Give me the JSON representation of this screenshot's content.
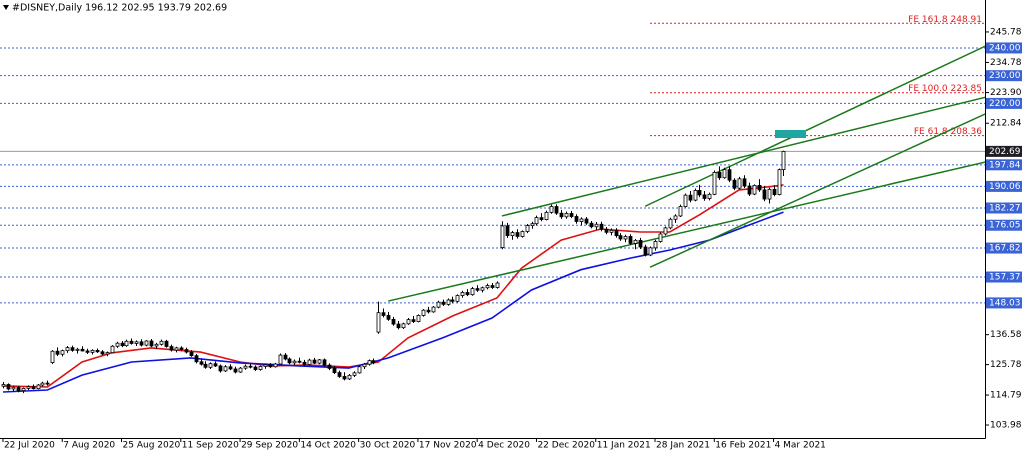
{
  "chart_data": {
    "type": "candlestick",
    "title": "#DISNEY,Daily  196.12 202.95 193.79 202.69",
    "categories": [
      "22 Jul 2020",
      null,
      null,
      null,
      null,
      null,
      null,
      null,
      null,
      null,
      null,
      null,
      "7 Aug 2020",
      null,
      null,
      null,
      null,
      null,
      null,
      null,
      null,
      null,
      null,
      null,
      "25 Aug 2020",
      null,
      null,
      null,
      null,
      null,
      null,
      null,
      null,
      null,
      null,
      null,
      "11 Sep 2020",
      null,
      null,
      null,
      null,
      null,
      null,
      null,
      null,
      null,
      null,
      null,
      "29 Sep 2020",
      null,
      null,
      null,
      null,
      null,
      null,
      null,
      null,
      null,
      null,
      null,
      "14 Oct 2020",
      null,
      null,
      null,
      null,
      null,
      null,
      null,
      null,
      null,
      null,
      null,
      "30 Oct 2020",
      null,
      null,
      null,
      null,
      null,
      null,
      null,
      null,
      null,
      null,
      null,
      "17 Nov 2020",
      null,
      null,
      null,
      null,
      null,
      null,
      null,
      null,
      null,
      null,
      null,
      "4 Dec 2020",
      null,
      null,
      null,
      null,
      null,
      null,
      null,
      null,
      null,
      null,
      null,
      "22 Dec 2020",
      null,
      null,
      null,
      null,
      null,
      null,
      null,
      null,
      null,
      null,
      null,
      "11 Jan 2021",
      null,
      null,
      null,
      null,
      null,
      null,
      null,
      null,
      null,
      null,
      null,
      "28 Jan 2021",
      null,
      null,
      null,
      null,
      null,
      null,
      null,
      null,
      null,
      null,
      null,
      "16 Feb 2021",
      null,
      null,
      null,
      null,
      null,
      null,
      null,
      null,
      null,
      null,
      null,
      "4 Mar 2021",
      null,
      null
    ],
    "ohlc": [
      [
        118.0,
        119.5,
        117.2,
        118.6
      ],
      [
        118.6,
        119.0,
        116.5,
        117.0
      ],
      [
        117.0,
        118.2,
        116.0,
        117.6
      ],
      [
        117.6,
        118.0,
        115.8,
        116.4
      ],
      [
        116.4,
        117.5,
        115.5,
        117.2
      ],
      [
        117.2,
        118.3,
        116.6,
        117.8
      ],
      [
        117.8,
        118.6,
        116.8,
        117.1
      ],
      [
        117.1,
        118.8,
        116.9,
        118.4
      ],
      [
        118.4,
        119.6,
        117.9,
        119.1
      ],
      [
        119.1,
        120.0,
        118.2,
        118.8
      ],
      [
        126.5,
        131.0,
        126.0,
        130.6
      ],
      [
        130.6,
        132.0,
        128.9,
        129.5
      ],
      [
        129.5,
        131.2,
        128.7,
        130.8
      ],
      [
        130.8,
        132.5,
        130.0,
        131.9
      ],
      [
        131.9,
        132.6,
        130.4,
        130.9
      ],
      [
        130.9,
        131.8,
        129.8,
        131.3
      ],
      [
        131.3,
        132.4,
        130.5,
        130.7
      ],
      [
        130.7,
        131.5,
        129.6,
        130.2
      ],
      [
        130.2,
        131.3,
        129.4,
        130.9
      ],
      [
        130.9,
        131.6,
        130.0,
        130.4
      ],
      [
        130.4,
        131.0,
        129.2,
        129.6
      ],
      [
        129.6,
        130.5,
        128.8,
        130.1
      ],
      [
        130.1,
        132.8,
        129.9,
        132.4
      ],
      [
        132.4,
        134.0,
        131.8,
        133.5
      ],
      [
        133.5,
        134.3,
        132.1,
        132.6
      ],
      [
        132.6,
        134.8,
        132.2,
        134.2
      ],
      [
        134.2,
        135.2,
        133.0,
        133.4
      ],
      [
        133.4,
        134.5,
        132.5,
        134.0
      ],
      [
        134.0,
        134.9,
        132.3,
        132.8
      ],
      [
        132.8,
        134.6,
        132.4,
        134.3
      ],
      [
        134.3,
        135.0,
        132.1,
        132.5
      ],
      [
        132.5,
        133.6,
        131.4,
        133.1
      ],
      [
        133.1,
        134.8,
        132.6,
        134.2
      ],
      [
        134.2,
        134.7,
        131.9,
        132.3
      ],
      [
        132.3,
        133.0,
        130.5,
        131.0
      ],
      [
        131.0,
        132.2,
        130.2,
        131.8
      ],
      [
        131.8,
        132.4,
        130.6,
        131.2
      ],
      [
        131.2,
        131.9,
        129.8,
        130.3
      ],
      [
        130.3,
        131.0,
        128.6,
        129.0
      ],
      [
        129.0,
        129.6,
        126.2,
        126.8
      ],
      [
        126.8,
        127.9,
        125.4,
        125.9
      ],
      [
        125.9,
        127.0,
        124.3,
        124.8
      ],
      [
        124.8,
        126.6,
        124.2,
        126.1
      ],
      [
        126.1,
        126.9,
        124.9,
        125.3
      ],
      [
        125.3,
        125.8,
        122.9,
        123.5
      ],
      [
        123.5,
        125.6,
        123.1,
        125.0
      ],
      [
        125.0,
        125.9,
        123.8,
        124.2
      ],
      [
        124.2,
        125.0,
        122.6,
        123.1
      ],
      [
        123.1,
        124.9,
        122.8,
        124.5
      ],
      [
        124.5,
        125.8,
        123.9,
        125.2
      ],
      [
        125.2,
        126.1,
        124.4,
        124.9
      ],
      [
        124.9,
        125.5,
        123.5,
        124.0
      ],
      [
        124.0,
        125.4,
        123.6,
        125.1
      ],
      [
        125.1,
        126.0,
        124.3,
        125.7
      ],
      [
        125.7,
        126.3,
        124.6,
        125.0
      ],
      [
        125.0,
        126.4,
        124.7,
        126.0
      ],
      [
        126.0,
        129.8,
        125.8,
        129.2
      ],
      [
        129.2,
        129.9,
        127.3,
        127.8
      ],
      [
        127.8,
        128.4,
        125.9,
        126.4
      ],
      [
        126.4,
        127.6,
        125.5,
        127.0
      ],
      [
        127.0,
        128.3,
        126.2,
        126.6
      ],
      [
        126.6,
        127.5,
        125.3,
        125.8
      ],
      [
        125.8,
        127.9,
        125.5,
        127.4
      ],
      [
        127.4,
        128.2,
        126.0,
        126.3
      ],
      [
        126.3,
        127.8,
        125.9,
        127.5
      ],
      [
        127.5,
        128.0,
        125.1,
        125.6
      ],
      [
        125.6,
        126.2,
        123.8,
        124.4
      ],
      [
        124.4,
        125.3,
        122.4,
        122.9
      ],
      [
        122.9,
        123.6,
        121.0,
        121.5
      ],
      [
        121.5,
        123.0,
        120.1,
        120.6
      ],
      [
        120.6,
        122.4,
        120.2,
        121.9
      ],
      [
        121.9,
        123.4,
        121.3,
        122.8
      ],
      [
        122.8,
        125.5,
        122.5,
        125.0
      ],
      [
        125.0,
        126.4,
        124.2,
        125.9
      ],
      [
        125.9,
        127.6,
        125.4,
        127.2
      ],
      [
        127.2,
        128.0,
        125.9,
        126.5
      ],
      [
        137.5,
        148.5,
        136.9,
        144.5
      ],
      [
        144.5,
        146.0,
        142.8,
        143.5
      ],
      [
        143.5,
        144.8,
        141.6,
        142.1
      ],
      [
        142.1,
        143.0,
        139.8,
        140.4
      ],
      [
        140.4,
        141.5,
        138.5,
        139.1
      ],
      [
        139.1,
        140.9,
        138.6,
        140.5
      ],
      [
        140.5,
        142.6,
        140.1,
        142.0
      ],
      [
        142.0,
        143.3,
        140.8,
        141.3
      ],
      [
        141.3,
        143.9,
        141.0,
        143.5
      ],
      [
        143.5,
        145.8,
        143.1,
        145.4
      ],
      [
        145.4,
        146.6,
        144.2,
        144.8
      ],
      [
        144.8,
        146.9,
        144.5,
        146.5
      ],
      [
        146.5,
        148.8,
        146.1,
        148.3
      ],
      [
        148.3,
        149.2,
        146.9,
        147.5
      ],
      [
        147.5,
        149.6,
        147.0,
        149.1
      ],
      [
        149.1,
        150.3,
        147.9,
        148.6
      ],
      [
        148.6,
        151.1,
        148.2,
        150.7
      ],
      [
        150.7,
        152.4,
        149.9,
        151.8
      ],
      [
        151.8,
        153.0,
        150.5,
        151.0
      ],
      [
        151.0,
        153.8,
        150.6,
        153.2
      ],
      [
        153.2,
        154.4,
        152.0,
        152.6
      ],
      [
        152.6,
        153.9,
        151.8,
        153.5
      ],
      [
        153.5,
        155.0,
        152.9,
        154.3
      ],
      [
        154.3,
        155.2,
        153.1,
        153.6
      ],
      [
        153.6,
        155.8,
        153.2,
        155.2
      ],
      [
        168.0,
        177.5,
        167.4,
        175.8
      ],
      [
        175.8,
        176.9,
        171.5,
        172.3
      ],
      [
        172.3,
        174.0,
        170.8,
        173.4
      ],
      [
        173.4,
        174.6,
        171.2,
        172.0
      ],
      [
        172.0,
        174.2,
        171.6,
        173.8
      ],
      [
        173.8,
        176.5,
        173.2,
        175.9
      ],
      [
        175.9,
        177.3,
        174.8,
        176.6
      ],
      [
        176.6,
        179.5,
        176.0,
        178.8
      ],
      [
        178.8,
        180.4,
        177.5,
        178.1
      ],
      [
        178.1,
        181.3,
        177.8,
        180.7
      ],
      [
        180.7,
        183.5,
        180.2,
        182.8
      ],
      [
        182.8,
        183.6,
        179.8,
        180.4
      ],
      [
        180.4,
        181.6,
        178.3,
        179.1
      ],
      [
        179.1,
        181.0,
        178.4,
        180.3
      ],
      [
        180.3,
        181.2,
        178.6,
        179.2
      ],
      [
        179.2,
        180.0,
        176.6,
        177.4
      ],
      [
        177.4,
        178.9,
        176.0,
        178.3
      ],
      [
        178.3,
        179.0,
        176.2,
        176.8
      ],
      [
        176.8,
        177.6,
        174.9,
        175.5
      ],
      [
        175.5,
        177.2,
        174.3,
        176.4
      ],
      [
        176.4,
        177.3,
        173.9,
        174.6
      ],
      [
        174.6,
        175.4,
        172.8,
        173.5
      ],
      [
        173.5,
        174.9,
        172.4,
        174.2
      ],
      [
        174.2,
        175.0,
        171.6,
        172.3
      ],
      [
        172.3,
        173.2,
        170.4,
        171.1
      ],
      [
        171.1,
        172.6,
        169.9,
        172.0
      ],
      [
        172.0,
        172.8,
        168.9,
        169.5
      ],
      [
        169.5,
        171.1,
        167.4,
        170.6
      ],
      [
        170.6,
        171.5,
        167.5,
        168.2
      ],
      [
        168.2,
        169.0,
        164.8,
        165.3
      ],
      [
        165.3,
        168.4,
        164.9,
        167.9
      ],
      [
        167.9,
        170.8,
        166.9,
        170.2
      ],
      [
        170.2,
        173.5,
        169.8,
        172.9
      ],
      [
        172.9,
        175.6,
        172.4,
        175.1
      ],
      [
        175.1,
        178.8,
        174.6,
        178.2
      ],
      [
        178.2,
        180.0,
        176.9,
        179.4
      ],
      [
        179.4,
        183.5,
        179.0,
        182.8
      ],
      [
        182.8,
        187.5,
        182.5,
        186.9
      ],
      [
        186.9,
        188.4,
        184.3,
        185.1
      ],
      [
        185.1,
        189.3,
        184.7,
        188.6
      ],
      [
        188.6,
        190.6,
        186.2,
        187.0
      ],
      [
        187.0,
        188.4,
        184.9,
        185.7
      ],
      [
        185.7,
        187.8,
        185.0,
        187.2
      ],
      [
        187.2,
        195.8,
        186.9,
        195.1
      ],
      [
        195.1,
        197.3,
        192.4,
        193.2
      ],
      [
        193.2,
        196.8,
        192.8,
        196.1
      ],
      [
        196.1,
        197.2,
        191.6,
        192.3
      ],
      [
        192.3,
        193.0,
        188.7,
        189.4
      ],
      [
        189.4,
        193.5,
        189.0,
        192.8
      ],
      [
        192.8,
        194.1,
        189.5,
        190.2
      ],
      [
        190.2,
        191.4,
        186.6,
        187.3
      ],
      [
        187.3,
        190.8,
        186.9,
        190.4
      ],
      [
        190.4,
        192.7,
        188.1,
        188.8
      ],
      [
        188.8,
        190.2,
        184.7,
        185.5
      ],
      [
        185.5,
        189.6,
        183.9,
        189.0
      ],
      [
        189.0,
        190.5,
        186.5,
        187.1
      ],
      [
        187.1,
        196.5,
        186.8,
        196.1
      ],
      [
        196.12,
        202.95,
        193.79,
        202.69
      ]
    ],
    "bull_color": "#ffffff",
    "bear_color": "#000000",
    "lines": [
      {
        "color": "#e01010",
        "x": [
          0,
          9,
          16,
          22,
          30,
          40,
          48,
          54,
          62,
          70,
          76,
          82,
          91,
          100,
          105,
          113,
          121,
          129,
          135,
          141,
          149,
          155,
          158
        ],
        "values": [
          118.1,
          117.7,
          126.7,
          130.0,
          131.8,
          130.3,
          126.7,
          125.3,
          125.6,
          124.9,
          126.7,
          135.4,
          143.3,
          149.8,
          160.6,
          170.7,
          174.7,
          173.6,
          173.6,
          179.8,
          188.8,
          189.9,
          190.6
        ]
      },
      {
        "color": "#1010e0",
        "x": [
          0,
          9,
          16,
          26,
          38,
          48,
          60,
          70,
          78,
          89,
          99,
          107,
          117,
          127,
          135,
          143,
          151,
          158
        ],
        "values": [
          115.9,
          116.6,
          122.0,
          126.7,
          128.2,
          126.4,
          125.3,
          124.5,
          128.2,
          135.4,
          142.6,
          152.7,
          160.0,
          164.2,
          167.1,
          170.7,
          176.1,
          180.8
        ]
      }
    ],
    "trendlines": [
      {
        "color": "#1a7a1a",
        "x": [
          78,
          205
        ],
        "y": [
          148.7,
          201.4
        ]
      },
      {
        "color": "#1a7a1a",
        "x": [
          101,
          205
        ],
        "y": [
          179.4,
          224.9
        ]
      },
      {
        "color": "#1a7a1a",
        "x": [
          130,
          205
        ],
        "y": [
          182.9,
          245.8
        ]
      },
      {
        "color": "#1a7a1a",
        "x": [
          131,
          205
        ],
        "y": [
          160.9,
          221.2
        ]
      }
    ],
    "levels": [
      {
        "value": 240,
        "label": "240.00"
      },
      {
        "value": 230,
        "label": "230.00"
      },
      {
        "value": 220,
        "label": "220.00"
      },
      197.84,
      190.06,
      182.27,
      176.05,
      167.82,
      157.37,
      148.03
    ],
    "level_color": "#3a63d6",
    "fib_levels": [
      {
        "value": 248.91,
        "label": "FE 161.8 248.91"
      },
      {
        "value": 223.85,
        "label": "FE 100.0 223.85"
      },
      {
        "value": 208.36,
        "label": "FE 61.8 208.36"
      }
    ],
    "fib_color": "#e02020",
    "xlim": [
      -0.6,
      198.8
    ],
    "ylim": [
      99.3,
      257.3
    ],
    "yticks": [
      245.78,
      234.78,
      {
        "value": 223.9,
        "label": "223.90"
      },
      212.84,
      136.58,
      125.78,
      114.79,
      103.98
    ]
  }
}
